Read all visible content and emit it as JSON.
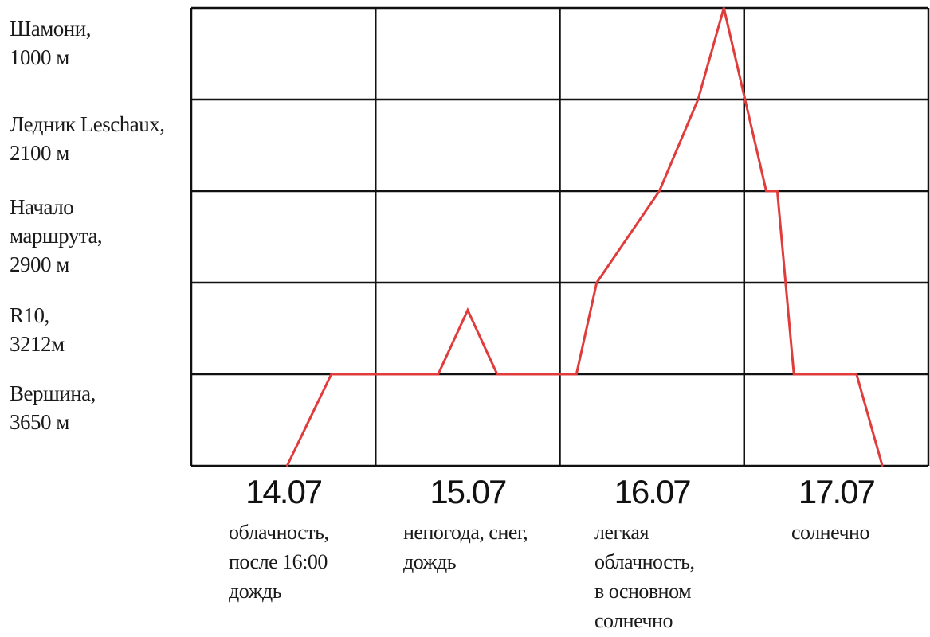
{
  "chart_data": {
    "type": "line",
    "title": "",
    "xlabel": "",
    "ylabel": "",
    "y_levels": [
      {
        "name": "Шамони",
        "lines": [
          "Шамони,",
          "1000 м"
        ]
      },
      {
        "name": "Ледник Leschaux",
        "lines": [
          "Ледник Leschaux,",
          "2100 м"
        ]
      },
      {
        "name": "Начало маршрута",
        "lines": [
          "Начало",
          "маршрута,",
          "2900 м"
        ]
      },
      {
        "name": "R10",
        "lines": [
          "R10,",
          "3212м"
        ]
      },
      {
        "name": "Вершина",
        "lines": [
          "Вершина,",
          "3650 м"
        ]
      }
    ],
    "x_days": [
      {
        "date": "14.07",
        "weather": [
          "облачность,",
          "после 16:00",
          "дождь"
        ]
      },
      {
        "date": "15.07",
        "weather": [
          "непогода, снег,",
          "дождь"
        ]
      },
      {
        "date": "16.07",
        "weather": [
          "легкая",
          "облачность,",
          "в основном",
          "солнечно"
        ]
      },
      {
        "date": "17.07",
        "weather": [
          "солнечно"
        ]
      }
    ],
    "x_range": [
      14.0,
      18.0
    ],
    "y_range": [
      0,
      5
    ],
    "grid": true,
    "series": [
      {
        "color": "#e03c3c",
        "points": [
          [
            14.52,
            0.0
          ],
          [
            14.76,
            1.0
          ],
          [
            15.34,
            1.0
          ],
          [
            15.5,
            1.7
          ],
          [
            15.66,
            1.0
          ],
          [
            16.09,
            1.0
          ],
          [
            16.2,
            2.0
          ],
          [
            16.54,
            3.0
          ],
          [
            16.75,
            4.0
          ],
          [
            16.89,
            5.0
          ],
          [
            17.12,
            3.0
          ],
          [
            17.18,
            3.0
          ],
          [
            17.27,
            1.0
          ],
          [
            17.61,
            1.0
          ],
          [
            17.75,
            0.0
          ]
        ]
      }
    ]
  }
}
